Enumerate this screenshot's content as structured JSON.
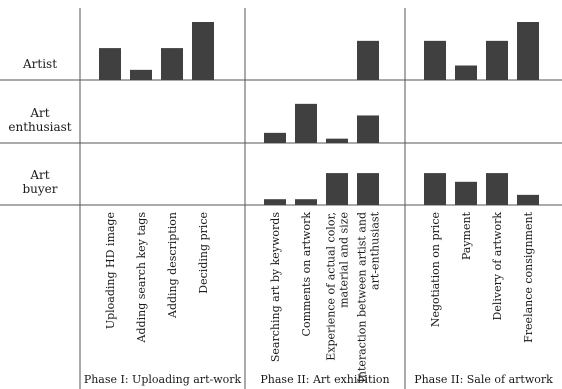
{
  "chart_data": {
    "type": "bar",
    "layout": "small-multiples grid: rows are user roles, column groups are phases",
    "ylim": [
      0,
      4
    ],
    "colors": {
      "bar": "#404040",
      "grid": "#555555",
      "text": "#1a1a1a"
    },
    "rows": [
      {
        "label_lines": [
          "Artist"
        ]
      },
      {
        "label_lines": [
          "Art",
          "enthusiast"
        ]
      },
      {
        "label_lines": [
          "Art",
          "buyer"
        ]
      }
    ],
    "phases": [
      {
        "label": "Phase I: Uploading art-work",
        "categories": [
          {
            "lines": [
              "Uploading HD image"
            ]
          },
          {
            "lines": [
              "Adding search key tags"
            ]
          },
          {
            "lines": [
              "Adding description"
            ]
          },
          {
            "lines": [
              "Deciding price"
            ]
          }
        ],
        "series": [
          {
            "values": [
              2.2,
              0.7,
              2.2,
              4
            ]
          },
          {
            "values": [
              0,
              0,
              0,
              0
            ]
          },
          {
            "values": [
              0,
              0,
              0,
              0
            ]
          }
        ]
      },
      {
        "label": "Phase II: Art exhibition",
        "categories": [
          {
            "lines": [
              "Searching art by keywords"
            ]
          },
          {
            "lines": [
              "Comments on artwork"
            ]
          },
          {
            "lines": [
              "Experience of actual color,",
              "material and size"
            ]
          },
          {
            "lines": [
              "Interaction between artist and",
              "art-enthusiast"
            ]
          }
        ],
        "series": [
          {
            "values": [
              0,
              0,
              0,
              2.7
            ]
          },
          {
            "values": [
              0.7,
              2.7,
              0.3,
              1.9
            ]
          },
          {
            "values": [
              0.4,
              0.4,
              2.2,
              2.2
            ]
          }
        ]
      },
      {
        "label": "Phase II: Sale of artwork",
        "categories": [
          {
            "lines": [
              "Negotiation on price"
            ]
          },
          {
            "lines": [
              "Payment"
            ]
          },
          {
            "lines": [
              "Delivery of artwork"
            ]
          },
          {
            "lines": [
              "Freelance consignment"
            ]
          }
        ],
        "series": [
          {
            "values": [
              2.7,
              1,
              2.7,
              4
            ]
          },
          {
            "values": [
              0,
              0,
              0,
              0
            ]
          },
          {
            "values": [
              2.2,
              1.6,
              2.2,
              0.7
            ]
          }
        ]
      }
    ]
  }
}
